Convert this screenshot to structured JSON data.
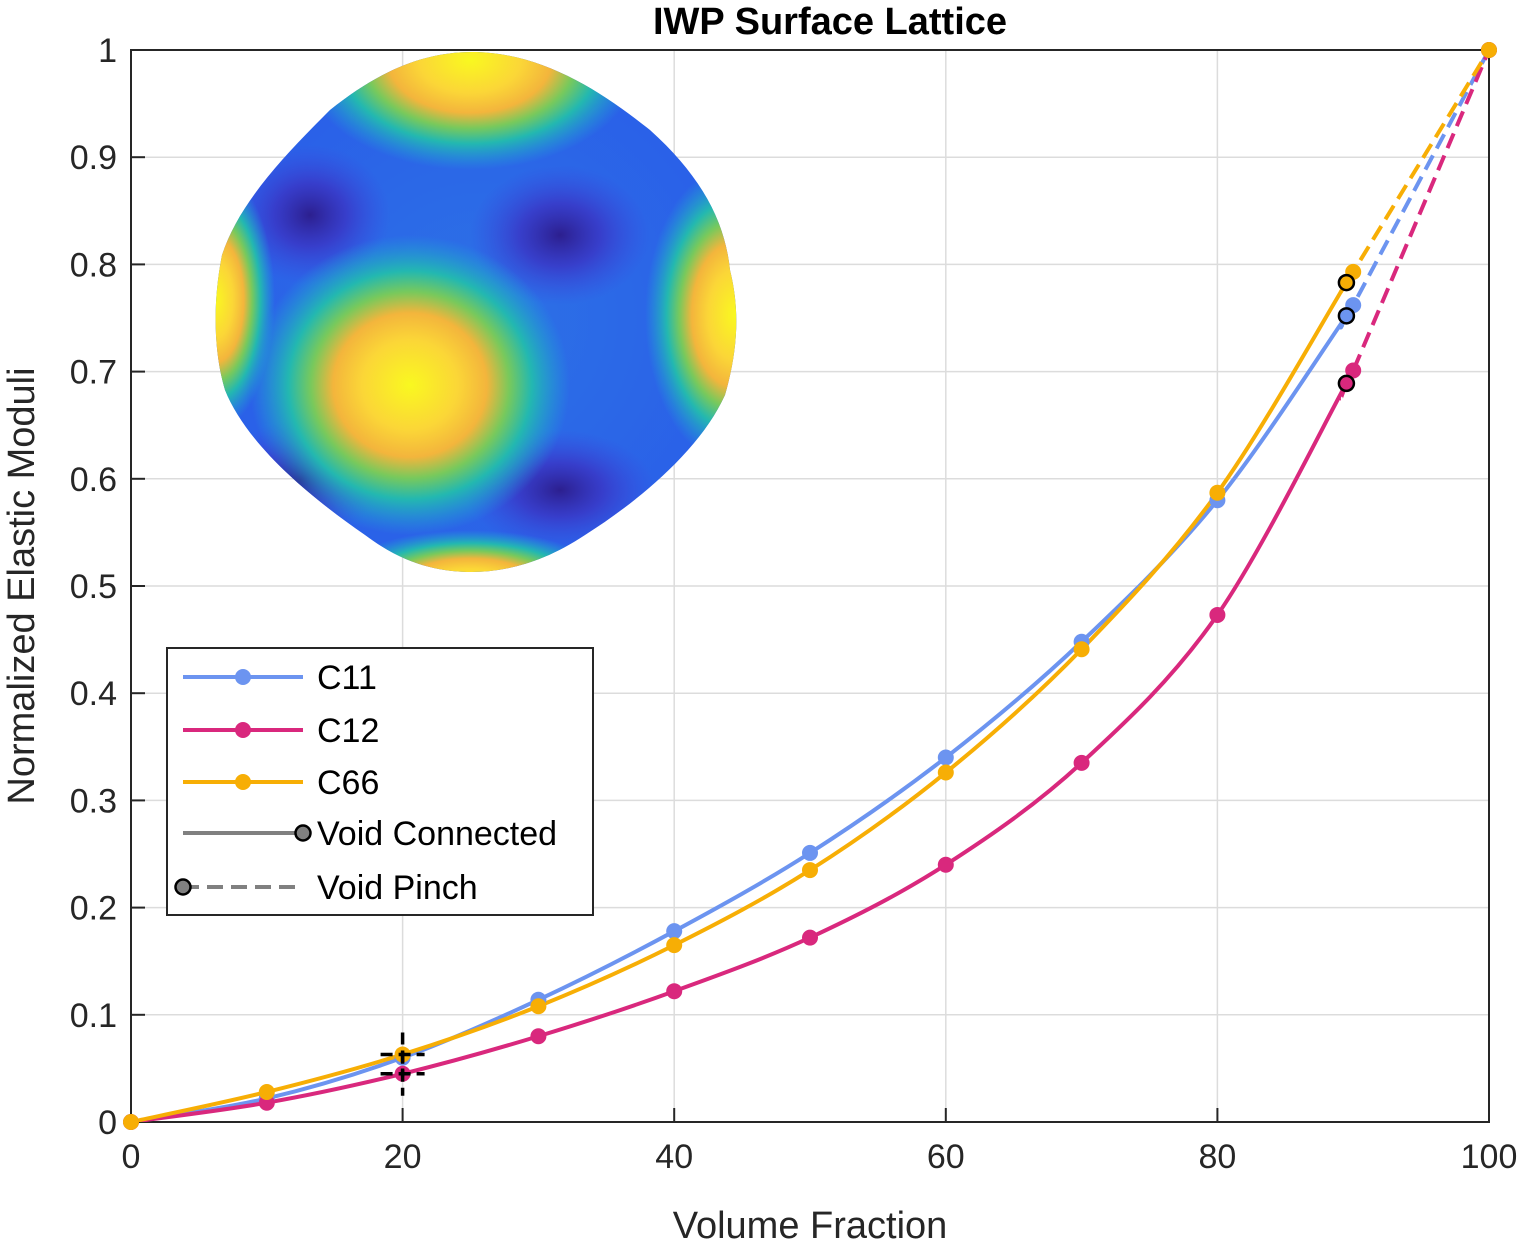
{
  "chart_data": {
    "type": "line",
    "title": "IWP Surface Lattice",
    "xlabel": "Volume Fraction",
    "ylabel": "Normalized Elastic Moduli",
    "xlim": [
      0,
      100
    ],
    "ylim": [
      0,
      1
    ],
    "xticks": [
      "0",
      "20",
      "40",
      "60",
      "80",
      "100"
    ],
    "yticks": [
      "0",
      "0.1",
      "0.2",
      "0.3",
      "0.4",
      "0.5",
      "0.6",
      "0.7",
      "0.8",
      "0.9",
      "1"
    ],
    "grid": true,
    "legend_position": "middle-left",
    "inset_image": "IWP surface unit cell rendered with yellow-to-blue colormap",
    "series": [
      {
        "name": "C11",
        "color": "#6c94f0",
        "x": [
          0,
          10,
          20,
          30,
          40,
          50,
          60,
          70,
          80,
          90,
          100
        ],
        "y": [
          0,
          0.022,
          0.06,
          0.114,
          0.178,
          0.251,
          0.34,
          0.448,
          0.58,
          0.762,
          1.0
        ]
      },
      {
        "name": "C12",
        "color": "#d9287d",
        "x": [
          0,
          10,
          20,
          30,
          40,
          50,
          60,
          70,
          80,
          90,
          100
        ],
        "y": [
          0,
          0.018,
          0.045,
          0.08,
          0.122,
          0.172,
          0.24,
          0.335,
          0.473,
          0.701,
          1.0
        ]
      },
      {
        "name": "C66",
        "color": "#f7ae05",
        "x": [
          0,
          10,
          20,
          30,
          40,
          50,
          60,
          70,
          80,
          90,
          100
        ],
        "y": [
          0,
          0.028,
          0.063,
          0.108,
          0.165,
          0.235,
          0.326,
          0.441,
          0.587,
          0.793,
          1.0
        ]
      }
    ],
    "style_legend": [
      {
        "name": "Void Connected",
        "line": "solid"
      },
      {
        "name": "Void Pinch",
        "line": "dashed"
      }
    ],
    "void_pinch_x": 89.5,
    "void_pinch_points": [
      {
        "series": "C11",
        "x": 89.5,
        "y": 0.752
      },
      {
        "series": "C12",
        "x": 89.5,
        "y": 0.689
      },
      {
        "series": "C66",
        "x": 89.5,
        "y": 0.783
      }
    ],
    "void_connected_points": [
      {
        "x": 20,
        "y": 0.063
      },
      {
        "x": 20,
        "y": 0.045
      }
    ]
  }
}
